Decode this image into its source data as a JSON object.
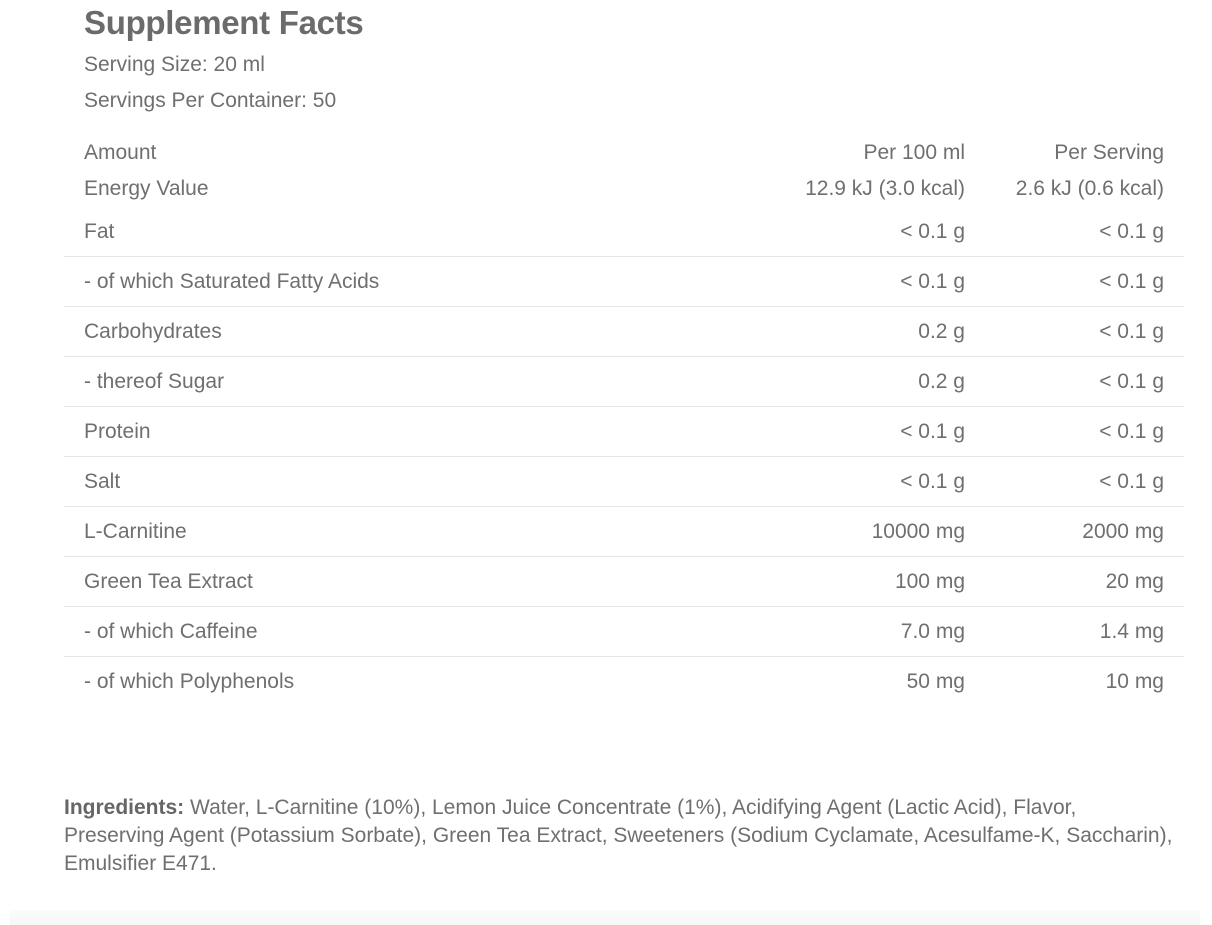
{
  "title": "Supplement Facts",
  "serving_size": "Serving Size: 20 ml",
  "servings_per_container": "Servings Per Container: 50",
  "table": {
    "header": {
      "name": "Amount",
      "per100": "Per 100 ml",
      "perServing": "Per Serving"
    },
    "energy": {
      "name": "Energy Value",
      "per100": "12.9 kJ (3.0 kcal)",
      "perServing": "2.6 kJ (0.6 kcal)"
    },
    "rows": [
      {
        "name": "Fat",
        "per100": "< 0.1 g",
        "perServing": "< 0.1 g"
      },
      {
        "name": "- of which Saturated Fatty Acids",
        "per100": "< 0.1 g",
        "perServing": "< 0.1 g"
      },
      {
        "name": "Carbohydrates",
        "per100": "0.2 g",
        "perServing": "< 0.1 g"
      },
      {
        "name": "- thereof Sugar",
        "per100": "0.2 g",
        "perServing": "< 0.1 g"
      },
      {
        "name": "Protein",
        "per100": "< 0.1 g",
        "perServing": "< 0.1 g"
      },
      {
        "name": "Salt",
        "per100": "< 0.1 g",
        "perServing": "< 0.1 g"
      },
      {
        "name": "L-Carnitine",
        "per100": "10000 mg",
        "perServing": "2000 mg"
      },
      {
        "name": "Green Tea Extract",
        "per100": "100 mg",
        "perServing": "20 mg"
      },
      {
        "name": "- of which Caffeine",
        "per100": "7.0 mg",
        "perServing": "1.4 mg"
      },
      {
        "name": "- of which Polyphenols",
        "per100": "50 mg",
        "perServing": "10 mg"
      }
    ]
  },
  "ingredients": {
    "label": "Ingredients:",
    "text": " Water, L-Carnitine (10%), Lemon Juice Concentrate (1%), Acidifying Agent (Lactic Acid), Flavor, Preserving Agent (Potassium Sorbate), Green Tea Extract, Sweeteners (Sodium Cyclamate, Acesulfame-K, Saccharin), Emulsifier E471."
  }
}
